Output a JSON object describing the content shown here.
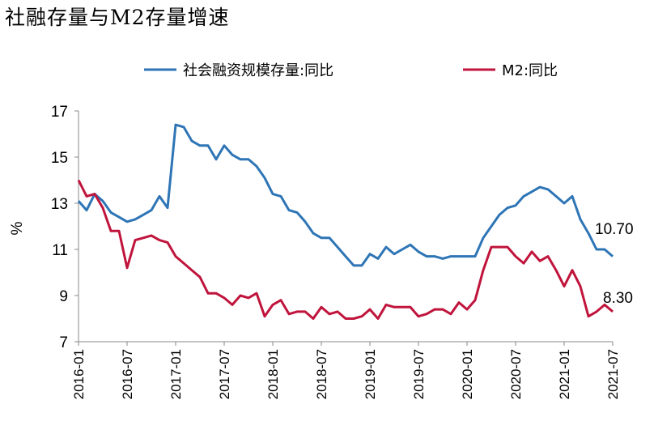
{
  "chart_data": {
    "type": "line",
    "title": "社融存量与M2存量增速",
    "ylabel": "%",
    "xlabel": "",
    "ylim": [
      7,
      17
    ],
    "yticks": [
      7,
      9,
      11,
      13,
      15,
      17
    ],
    "xticks": [
      "2016-01",
      "2016-07",
      "2017-01",
      "2017-07",
      "2018-01",
      "2018-07",
      "2019-01",
      "2019-07",
      "2020-01",
      "2020-07",
      "2021-01",
      "2021-07"
    ],
    "x_start": "2016-01",
    "x_end": "2021-07",
    "legend_position": "top",
    "series": [
      {
        "name": "社会融资规模存量:同比",
        "color": "#2e75b6",
        "end_label": "10.70",
        "values": [
          13.1,
          12.7,
          13.4,
          13.1,
          12.6,
          12.4,
          12.2,
          12.3,
          12.5,
          12.7,
          13.3,
          12.8,
          16.4,
          16.3,
          15.7,
          15.5,
          15.5,
          14.9,
          15.5,
          15.1,
          14.9,
          14.9,
          14.6,
          14.1,
          13.4,
          13.3,
          12.7,
          12.6,
          12.2,
          11.7,
          11.5,
          11.5,
          11.1,
          10.7,
          10.3,
          10.3,
          10.8,
          10.6,
          11.1,
          10.8,
          11.0,
          11.2,
          10.9,
          10.7,
          10.7,
          10.6,
          10.7,
          10.7,
          10.7,
          10.7,
          11.5,
          12.0,
          12.5,
          12.8,
          12.9,
          13.3,
          13.5,
          13.7,
          13.6,
          13.3,
          13.0,
          13.3,
          12.3,
          11.7,
          11.0,
          11.0,
          10.7
        ]
      },
      {
        "name": "M2:同比",
        "color": "#c0143c",
        "end_label": "8.30",
        "values": [
          14.0,
          13.3,
          13.4,
          12.8,
          11.8,
          11.8,
          10.2,
          11.4,
          11.5,
          11.6,
          11.4,
          11.3,
          10.7,
          10.4,
          10.1,
          9.8,
          9.1,
          9.1,
          8.9,
          8.6,
          9.0,
          8.9,
          9.1,
          8.1,
          8.6,
          8.8,
          8.2,
          8.3,
          8.3,
          8.0,
          8.5,
          8.2,
          8.3,
          8.0,
          8.0,
          8.1,
          8.4,
          8.0,
          8.6,
          8.5,
          8.5,
          8.5,
          8.1,
          8.2,
          8.4,
          8.4,
          8.2,
          8.7,
          8.4,
          8.8,
          10.1,
          11.1,
          11.1,
          11.1,
          10.7,
          10.4,
          10.9,
          10.5,
          10.7,
          10.1,
          9.4,
          10.1,
          9.4,
          8.1,
          8.3,
          8.6,
          8.3
        ]
      }
    ]
  }
}
